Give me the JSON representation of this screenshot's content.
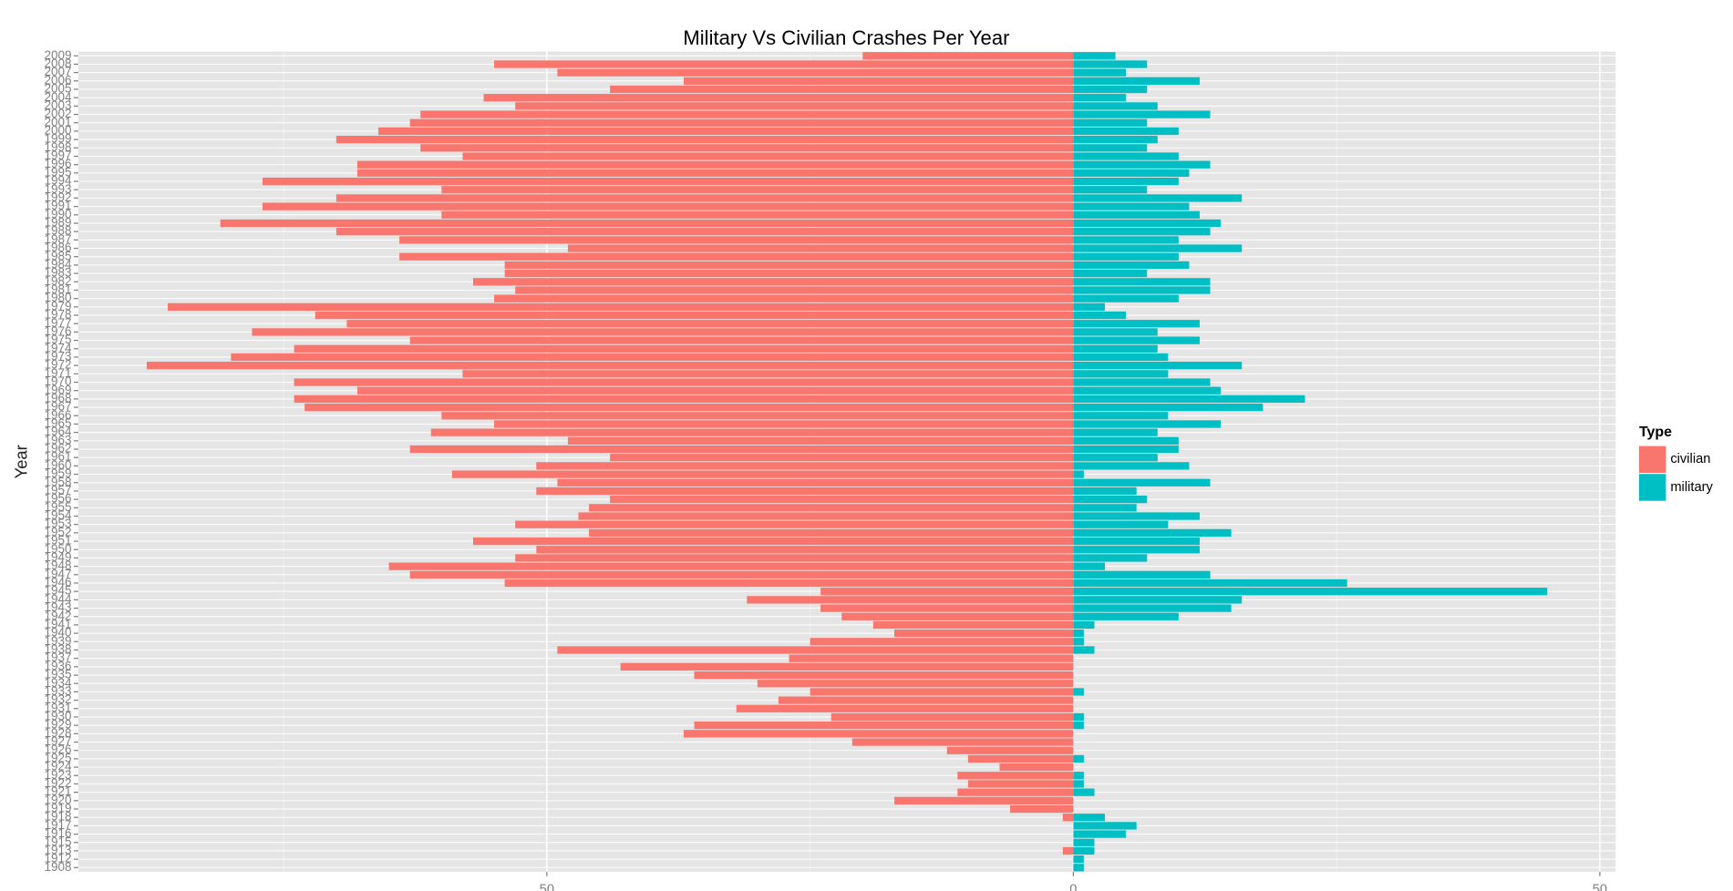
{
  "chart_data": {
    "type": "diverging-bar",
    "title": "Military Vs Civilian Crashes Per Year",
    "ylabel": "Year",
    "legend_title": "Type",
    "legend_position": "right",
    "categories": [
      "2009",
      "2008",
      "2007",
      "2006",
      "2005",
      "2004",
      "2003",
      "2002",
      "2001",
      "2000",
      "1999",
      "1998",
      "1997",
      "1996",
      "1995",
      "1994",
      "1993",
      "1992",
      "1991",
      "1990",
      "1989",
      "1988",
      "1987",
      "1986",
      "1985",
      "1984",
      "1983",
      "1982",
      "1981",
      "1980",
      "1979",
      "1978",
      "1977",
      "1976",
      "1975",
      "1974",
      "1973",
      "1972",
      "1971",
      "1970",
      "1969",
      "1968",
      "1967",
      "1966",
      "1965",
      "1964",
      "1963",
      "1962",
      "1961",
      "1960",
      "1959",
      "1958",
      "1957",
      "1956",
      "1955",
      "1954",
      "1953",
      "1952",
      "1951",
      "1950",
      "1949",
      "1948",
      "1947",
      "1946",
      "1945",
      "1944",
      "1943",
      "1942",
      "1941",
      "1940",
      "1939",
      "1938",
      "1937",
      "1936",
      "1935",
      "1934",
      "1933",
      "1932",
      "1931",
      "1930",
      "1929",
      "1928",
      "1927",
      "1926",
      "1925",
      "1924",
      "1923",
      "1922",
      "1921",
      "1920",
      "1919",
      "1918",
      "1917",
      "1916",
      "1915",
      "1913",
      "1912",
      "1908"
    ],
    "series": [
      {
        "name": "civilian",
        "color": "#f8766d",
        "values": [
          -20,
          -55,
          -49,
          -37,
          -44,
          -56,
          -53,
          -62,
          -63,
          -66,
          -70,
          -62,
          -58,
          -68,
          -68,
          -77,
          -60,
          -70,
          -77,
          -60,
          -81,
          -70,
          -64,
          -48,
          -64,
          -54,
          -54,
          -57,
          -53,
          -55,
          -86,
          -72,
          -69,
          -78,
          -63,
          -74,
          -80,
          -88,
          -58,
          -74,
          -68,
          -74,
          -73,
          -60,
          -55,
          -61,
          -48,
          -63,
          -44,
          -51,
          -59,
          -49,
          -51,
          -44,
          -46,
          -47,
          -53,
          -46,
          -57,
          -51,
          -53,
          -65,
          -63,
          -54,
          -24,
          -31,
          -24,
          -22,
          -19,
          -17,
          -25,
          -49,
          -27,
          -43,
          -36,
          -30,
          -25,
          -28,
          -32,
          -23,
          -36,
          -37,
          -21,
          -12,
          -10,
          -7,
          -11,
          -10,
          -11,
          -17,
          -6,
          -1,
          0,
          0,
          0,
          -1,
          0,
          0
        ]
      },
      {
        "name": "military",
        "color": "#00bfc4",
        "values": [
          4,
          7,
          5,
          12,
          7,
          5,
          8,
          13,
          7,
          10,
          8,
          7,
          10,
          13,
          11,
          10,
          7,
          16,
          11,
          12,
          14,
          13,
          10,
          16,
          10,
          11,
          7,
          13,
          13,
          10,
          3,
          5,
          12,
          8,
          12,
          8,
          9,
          16,
          9,
          13,
          14,
          22,
          18,
          9,
          14,
          8,
          10,
          10,
          8,
          11,
          1,
          13,
          6,
          7,
          6,
          12,
          9,
          15,
          12,
          12,
          7,
          3,
          13,
          26,
          45,
          16,
          15,
          10,
          2,
          1,
          1,
          2,
          0,
          0,
          0,
          0,
          1,
          0,
          0,
          1,
          1,
          0,
          0,
          0,
          1,
          0,
          1,
          1,
          2,
          0,
          0,
          3,
          6,
          5,
          2,
          2,
          1,
          1
        ]
      }
    ],
    "xlim": [
      -94.5,
      51.5
    ],
    "xticks": [
      {
        "value": -50,
        "label": "50"
      },
      0,
      50
    ],
    "minor_gridlines": [
      -75,
      -25,
      25
    ],
    "grid": true
  }
}
